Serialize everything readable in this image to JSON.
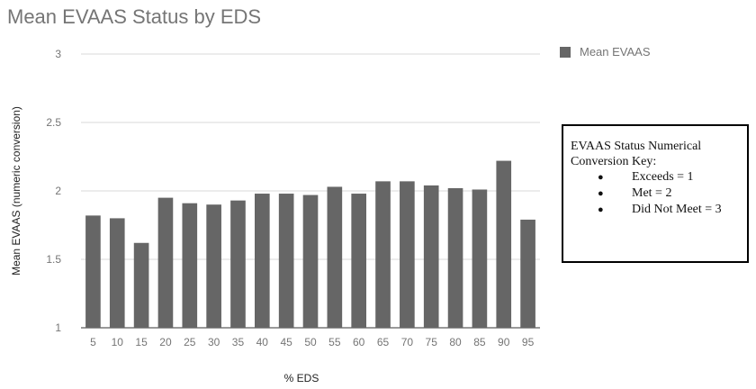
{
  "chart_data": {
    "type": "bar",
    "title": "Mean EVAAS Status by EDS",
    "xlabel": "% EDS",
    "ylabel": "Mean EVAAS (numeric conversion)",
    "ylim": [
      1,
      3
    ],
    "yticks": [
      "1",
      "1.5",
      "2",
      "2.5",
      "3"
    ],
    "categories": [
      "5",
      "10",
      "15",
      "20",
      "25",
      "30",
      "35",
      "40",
      "45",
      "50",
      "55",
      "60",
      "65",
      "70",
      "75",
      "80",
      "85",
      "90",
      "95"
    ],
    "series": [
      {
        "name": "Mean EVAAS",
        "color": "#666666",
        "values": [
          1.82,
          1.8,
          1.62,
          1.95,
          1.91,
          1.9,
          1.93,
          1.98,
          1.98,
          1.97,
          2.03,
          1.98,
          2.07,
          2.07,
          2.04,
          2.02,
          2.01,
          2.22,
          1.79
        ]
      }
    ],
    "grid": true,
    "legend_position": "top-right"
  },
  "legend": {
    "label": "Mean EVAAS",
    "color": "#666666"
  },
  "key_box": {
    "title": "EVAAS Status Numerical Conversion Key:",
    "items": [
      "Exceeds = 1",
      "Met = 2",
      "Did Not Meet = 3"
    ]
  }
}
